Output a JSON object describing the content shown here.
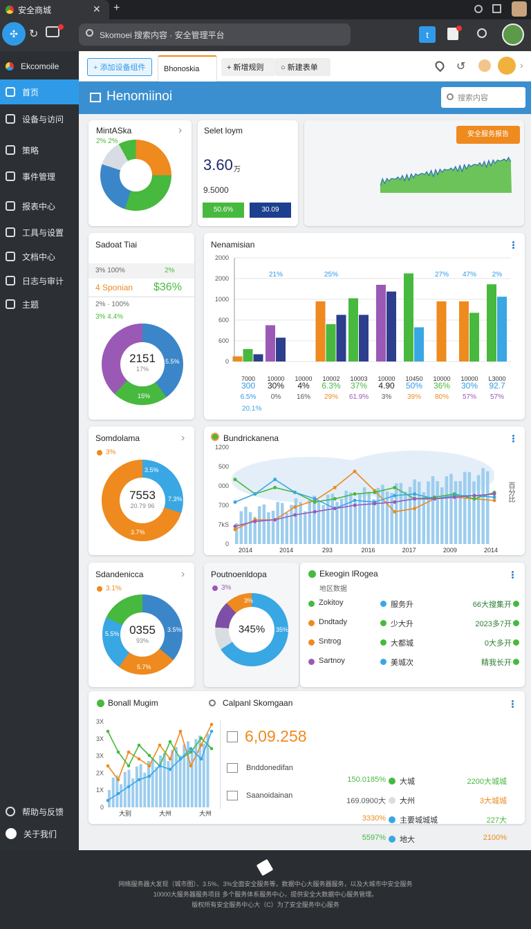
{
  "browser": {
    "tab_title": "安全商城",
    "address": "Skomoei 搜索内容 · 安全管理平台"
  },
  "sidebar": {
    "brand": "Ekcomoile",
    "items": [
      {
        "label": "首页",
        "icon": "dashboard-icon"
      },
      {
        "label": "设备与访问",
        "icon": "lock-icon"
      },
      {
        "label": "策略",
        "icon": "shield-icon"
      },
      {
        "label": "事件管理",
        "icon": "pin-icon"
      },
      {
        "label": "报表中心",
        "icon": "chart-icon"
      },
      {
        "label": "工具与设置",
        "icon": "people-icon"
      },
      {
        "label": "文档中心",
        "icon": "video-icon"
      },
      {
        "label": "日志与审计",
        "icon": "monitor-icon"
      },
      {
        "label": "主题",
        "icon": "target-icon"
      }
    ],
    "bottom": [
      {
        "label": "帮助与反馈"
      },
      {
        "label": "关于我们"
      }
    ]
  },
  "toolbar": {
    "btn1": "+ 添加设备组件",
    "btn2": "Bhonoskia",
    "btn3": "+ 新增规则",
    "btn4": "○ 新建表单"
  },
  "header": {
    "title": "Henomiinoi",
    "search_placeholder": "搜索内容"
  },
  "colors": {
    "blue": "#3b86c8",
    "green": "#47b93e",
    "orange": "#ee8a1e",
    "purple": "#9b59b6",
    "navy": "#2c3e8c",
    "lightblue": "#39a7e3"
  },
  "card1": {
    "title": "MintASka",
    "sub": "2% 2%"
  },
  "card2": {
    "title": "Selet loym",
    "value": "3.60",
    "unit": "万",
    "sub": "9.5000",
    "btn_green": "50.6%",
    "btn_navy": "30.09"
  },
  "card3": {
    "btn": "安全服务报告"
  },
  "card4": {
    "title": "Sadoat Tiai",
    "line1": "3% 100%",
    "line1b": "2%",
    "big_label": "4 Sponian",
    "big_value": "$36%",
    "line3": "2% · 100%",
    "line4": "3% 4.4%",
    "center_value": "2151",
    "center_sub": "17%",
    "lbl_right": "5.5%",
    "lbl_bottom": "15%"
  },
  "chart_main": {
    "title": "Nenamisian",
    "row1": [
      "300",
      "30%",
      "4%",
      "6.3%",
      "37%",
      "4.90",
      "50%",
      "36%",
      "30%",
      "92.7"
    ],
    "row2": [
      "6.5%",
      "0%",
      "16%",
      "29%",
      "61.9%",
      "3%",
      "39%",
      "80%",
      "57%",
      "57%"
    ],
    "row3": "20.1%"
  },
  "chart_data": [
    {
      "type": "bar",
      "title": "Nenamisian",
      "yticks": [
        "0",
        "600",
        "600",
        "1000",
        "2000",
        "2000"
      ],
      "categories": [
        "7000",
        "10000",
        "10000",
        "10002",
        "10003",
        "10000",
        "10450",
        "10000",
        "10000",
        "L3000"
      ],
      "series": [
        {
          "color": "#ee8a1e",
          "values": [
            100,
            0,
            0,
            1160,
            0,
            0,
            0,
            1160,
            1160,
            0
          ]
        },
        {
          "color": "#9b59b6",
          "values": [
            0,
            700,
            0,
            0,
            0,
            1480,
            0,
            0,
            0,
            0
          ]
        },
        {
          "color": "#47b93e",
          "values": [
            240,
            0,
            0,
            720,
            1220,
            0,
            1700,
            0,
            940,
            1490
          ]
        },
        {
          "color": "#2c3e8c",
          "values": [
            140,
            460,
            0,
            900,
            900,
            1350,
            0,
            0,
            0,
            0
          ]
        },
        {
          "color": "#39a7e3",
          "values": [
            0,
            0,
            0,
            0,
            0,
            0,
            660,
            0,
            0,
            1250
          ]
        }
      ],
      "labels": [
        "",
        "21%",
        "",
        "25%",
        "",
        "",
        "",
        "27%",
        "47%",
        "2%"
      ],
      "ylim": [
        0,
        2000
      ]
    },
    {
      "type": "line",
      "title": "Bundrickanena",
      "yticks": [
        "0",
        "7kS",
        "700",
        "000",
        "500",
        "1200"
      ],
      "xticks": [
        "2014",
        "2014",
        "293",
        "2016",
        "2017",
        "2009",
        "2014"
      ],
      "series": [
        {
          "color": "#ee8a1e",
          "values": [
            180,
            300,
            300,
            460,
            540,
            700,
            900,
            660,
            400,
            440,
            560,
            580,
            560,
            540
          ]
        },
        {
          "color": "#47b93e",
          "values": [
            800,
            620,
            700,
            640,
            520,
            560,
            620,
            640,
            700,
            560,
            580,
            620,
            560,
            640
          ]
        },
        {
          "color": "#39a7e3",
          "values": [
            520,
            620,
            800,
            640,
            560,
            440,
            540,
            520,
            600,
            620,
            560,
            600,
            600,
            580
          ]
        },
        {
          "color": "#9b59b6",
          "values": [
            220,
            280,
            300,
            360,
            400,
            440,
            480,
            500,
            520,
            560,
            560,
            580,
            600,
            620
          ]
        }
      ],
      "ylim": [
        0,
        1200
      ]
    }
  ],
  "card_s1": {
    "title": "Somdolama",
    "legend": "3%",
    "center": "7553",
    "center_sub": "20.79 96",
    "l1": "3.5%",
    "l2": "7.3%",
    "l3": "3.7%"
  },
  "card_s2": {
    "title": "Sdandenicca",
    "legend": "3.1%",
    "center": "0355",
    "center_sub": "93%",
    "l1": "5.5%",
    "l2": "3.5%",
    "l3": "5.7%"
  },
  "card_p": {
    "title": "Poutnoenldopa",
    "legend": "3%",
    "center": "345%",
    "l1": "3%",
    "l2": "35%"
  },
  "region": {
    "title": "Ekeogin lRogea",
    "sub": "地区数据",
    "rows": [
      {
        "dot1": "#47b93e",
        "name": "Zokitoy",
        "dot2": "#39a7e3",
        "mid": "服务升",
        "val": "66大搜集开"
      },
      {
        "dot1": "#ee8a1e",
        "name": "Dndtady",
        "dot2": "#47b93e",
        "mid": "少大升",
        "val": "2023多7开"
      },
      {
        "dot1": "#ee8a1e",
        "name": "Sntrog",
        "dot2": "#47b93e",
        "mid": "大都城",
        "val": "0大多开"
      },
      {
        "dot1": "#9b59b6",
        "name": "Sartnoy",
        "dot2": "#39a7e3",
        "mid": "美城次",
        "val": "精我长开"
      }
    ]
  },
  "bottom": {
    "left_title": "Bonall Mugim",
    "left_yticks": [
      "0",
      "1X",
      "2X",
      "3X",
      "3X",
      "3X"
    ],
    "left_xticks": [
      "大别",
      "大州",
      "大州"
    ],
    "mid_title": "Calpanl Skomgaan",
    "big_value": "6,09.258",
    "row1_label": "Bnddonedifan",
    "row2_label": "Saanoidainan",
    "stats": [
      {
        "left": "150.0185%",
        "dot": "#47b93e",
        "mid": "大城",
        "right": "2200大城城"
      },
      {
        "left": "169.0900大",
        "dot": "#dddddd",
        "mid": "大州",
        "right": "3大城城"
      },
      {
        "left": "3330%",
        "dot": "#39a7e3",
        "mid": "主要城城城",
        "right": "227大"
      },
      {
        "left": "5597%",
        "dot": "#39a7e3",
        "mid": "地大",
        "right": "2100%"
      }
    ]
  },
  "footer": {
    "line1": "网络服务器大发现（城市图）、3.5%、3%全面安全服务等，数据中心大服务器服务，以及大城市中安全服务",
    "line2": "10000大服务器服务项目 多个服务体系服务中心，提供安全大数据中心服务管理。",
    "line3": "版权所有安全服务中心大（C）为了安全服务中心服务"
  }
}
